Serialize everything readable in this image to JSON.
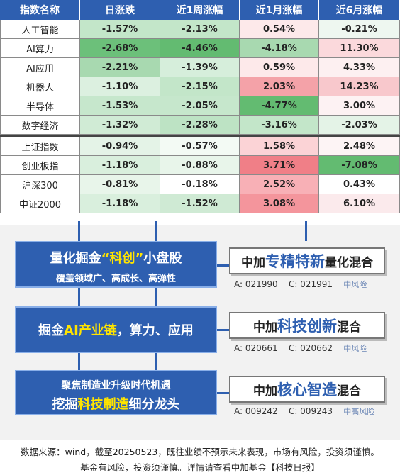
{
  "table": {
    "headers": [
      "指数名称",
      "日涨跌",
      "近1周涨幅",
      "近1月涨幅",
      "近6月涨幅"
    ],
    "group1": [
      {
        "name": "人工智能",
        "vals": [
          "-1.57%",
          "-2.13%",
          "0.54%",
          "-0.21%"
        ],
        "colors": [
          "#c3e6c9",
          "#c3e6c9",
          "#fde9ea",
          "#eef7f0"
        ]
      },
      {
        "name": "AI算力",
        "vals": [
          "-2.68%",
          "-4.46%",
          "-4.18%",
          "11.30%"
        ],
        "colors": [
          "#6cc07a",
          "#63bb71",
          "#a8d9b0",
          "#fbd9dc"
        ]
      },
      {
        "name": "AI应用",
        "vals": [
          "-2.21%",
          "-1.39%",
          "0.59%",
          "4.33%"
        ],
        "colors": [
          "#a8d9b0",
          "#d6eedb",
          "#fde9ea",
          "#fdf0f1"
        ]
      },
      {
        "name": "机器人",
        "vals": [
          "-1.10%",
          "-2.15%",
          "2.03%",
          "14.23%"
        ],
        "colors": [
          "#dcf0e0",
          "#c3e6c9",
          "#f4a2a8",
          "#f8c8cc"
        ]
      },
      {
        "name": "半导体",
        "vals": [
          "-1.53%",
          "-2.05%",
          "-4.77%",
          "3.00%"
        ],
        "colors": [
          "#c6e7cc",
          "#c6e7cc",
          "#63bb71",
          "#fdf2f3"
        ]
      },
      {
        "name": "数字经济",
        "vals": [
          "-1.32%",
          "-2.28%",
          "-3.16%",
          "-2.03%"
        ],
        "colors": [
          "#d0ebd5",
          "#bde3c4",
          "#c3e6c9",
          "#e4f3e7"
        ]
      }
    ],
    "group2": [
      {
        "name": "上证指数",
        "vals": [
          "-0.94%",
          "-0.57%",
          "1.58%",
          "2.48%"
        ],
        "colors": [
          "#e4f3e7",
          "#f3faf4",
          "#fbd3d6",
          "#fdf4f5"
        ]
      },
      {
        "name": "创业板指",
        "vals": [
          "-1.18%",
          "-0.88%",
          "3.71%",
          "-7.08%"
        ],
        "colors": [
          "#d9efdd",
          "#e8f5ea",
          "#f07f87",
          "#63bb71"
        ]
      },
      {
        "name": "沪深300",
        "vals": [
          "-0.81%",
          "-0.18%",
          "2.52%",
          "0.43%"
        ],
        "colors": [
          "#e8f5ea",
          "#ffffff",
          "#f8b0b6",
          "#ffffff"
        ]
      },
      {
        "name": "中证2000",
        "vals": [
          "-1.18%",
          "-1.52%",
          "3.08%",
          "6.10%"
        ],
        "colors": [
          "#d9efdd",
          "#cfead4",
          "#f4959c",
          "#fbeaec"
        ]
      }
    ]
  },
  "left_boxes": [
    {
      "line1_a": "量化掘金",
      "line1_b": "“科创”",
      "line1_c": "小盘股",
      "line2": "覆盖领域广、高成长、高弹性"
    },
    {
      "line1_a": "掘金",
      "line1_b": "AI产业链",
      "line1_c": "，算力、应用"
    },
    {
      "line1": "聚焦制造业升级时代机遇",
      "line2_a": "挖掘",
      "line2_b": "科技制造",
      "line2_c": "细分龙头"
    }
  ],
  "funds": [
    {
      "pre": "中加",
      "hl": "专精特新",
      "post": "量化混合",
      "codeA": "A: 021990",
      "codeC": "C: 021991",
      "risk": "中风险"
    },
    {
      "pre": "中加",
      "hl": "科技创新",
      "post": "混合",
      "codeA": "A: 020661",
      "codeC": "C: 020662",
      "risk": "中风险"
    },
    {
      "pre": "中加",
      "hl": "核心智造",
      "post": "混合",
      "codeA": "A: 009242",
      "codeC": "C: 009243",
      "risk": "中高风险"
    }
  ],
  "footer": {
    "line1": "数据来源：wind，截至20250523，既往业绩不预示未来表现，市场有风险，投资须谨慎。",
    "line2": "基金有风险，投资须谨慎。详情请查看中加基金【科技日报】"
  },
  "colors": {
    "accent": "#2e5fb0",
    "highlight": "#ffe400"
  }
}
